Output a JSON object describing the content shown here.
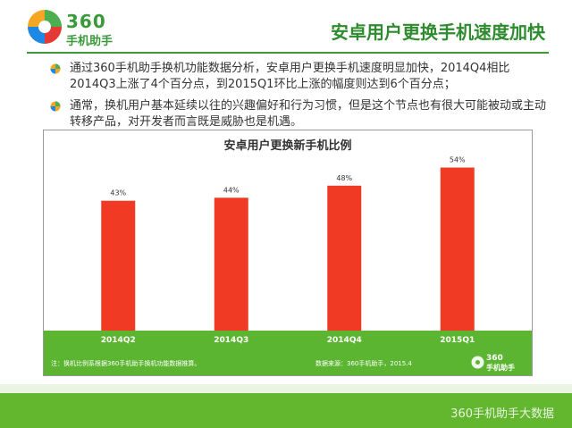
{
  "header": {
    "logo_number": "360",
    "logo_name": "手机助手",
    "title": "安卓用户更换手机速度加快"
  },
  "bullets": [
    {
      "text": "通过360手机助手换机功能数据分析，安卓用户更换手机速度明显加快，2014Q4相比2014Q3上涨了4个百分点，到2015Q1环比上涨的幅度则达到6个百分点；"
    },
    {
      "text": "通常，换机用户基本延续以往的兴趣偏好和行为习惯，但是这个节点也有很大可能被动或主动转移产品，对开发者而言既是威胁也是机遇。"
    }
  ],
  "chart_note_left": "注：换机比例系根据360手机助手换机功能数据推算。",
  "chart_note_right": "数据来源：360手机助手，2015.4",
  "chart_logo_number": "360",
  "chart_logo_name": "手机助手",
  "footer_watermark": "360手机助手大数据",
  "colors": {
    "brand_green": "#3a9a3a",
    "bar_red": "#f03a24",
    "axis_band_green": "#5cb531"
  },
  "chart_data": {
    "type": "bar",
    "title": "安卓用户更换新手机比例",
    "categories": [
      "2014Q2",
      "2014Q3",
      "2014Q4",
      "2015Q1"
    ],
    "values": [
      43,
      44,
      48,
      54
    ],
    "value_labels": [
      "43%",
      "44%",
      "48%",
      "54%"
    ],
    "ylim": [
      0,
      58
    ],
    "grid": false,
    "legend": "none"
  }
}
